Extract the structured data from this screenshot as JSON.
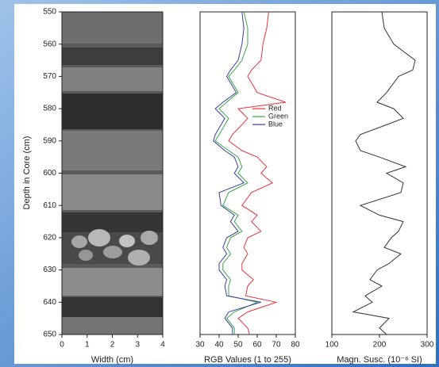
{
  "chart_data": [
    {
      "type": "image",
      "xlabel": "Width (cm)",
      "ylabel": "Depth in Core (cm)",
      "xlim": [
        0,
        4
      ],
      "xticks": [
        0,
        1,
        2,
        3,
        4
      ],
      "ylim": [
        550,
        650
      ],
      "yticks": [
        550,
        560,
        570,
        580,
        590,
        600,
        610,
        620,
        630,
        640,
        650
      ]
    },
    {
      "type": "line",
      "xlabel": "RGB Values (1 to 255)",
      "xlim": [
        30,
        80
      ],
      "xticks": [
        30,
        40,
        50,
        60,
        70,
        80
      ],
      "ylim": [
        550,
        650
      ],
      "legend": "center",
      "y": [
        550,
        555,
        560,
        565,
        568,
        570,
        575,
        578,
        580,
        583,
        585,
        588,
        590,
        593,
        595,
        598,
        600,
        603,
        606,
        610,
        613,
        615,
        618,
        620,
        623,
        625,
        628,
        630,
        633,
        635,
        638,
        640,
        643,
        645,
        648,
        650
      ],
      "series": [
        {
          "name": "Red",
          "color": "#e8343a",
          "values": [
            66,
            65,
            63,
            62,
            57,
            55,
            60,
            75,
            50,
            55,
            52,
            47,
            45,
            52,
            60,
            65,
            62,
            68,
            57,
            52,
            60,
            57,
            62,
            55,
            53,
            55,
            52,
            52,
            58,
            55,
            54,
            70,
            55,
            50,
            55,
            56
          ]
        },
        {
          "name": "Green",
          "color": "#3aa64a",
          "values": [
            53,
            55,
            55,
            52,
            48,
            45,
            50,
            44,
            40,
            45,
            43,
            40,
            38,
            45,
            50,
            52,
            50,
            55,
            45,
            42,
            50,
            48,
            52,
            46,
            44,
            46,
            42,
            42,
            46,
            45,
            45,
            60,
            48,
            44,
            48,
            48
          ]
        },
        {
          "name": "Blue",
          "color": "#3b3f9c",
          "values": [
            52,
            53,
            52,
            50,
            46,
            44,
            49,
            42,
            38,
            43,
            41,
            38,
            37,
            43,
            48,
            50,
            48,
            53,
            40,
            41,
            48,
            46,
            50,
            44,
            42,
            44,
            40,
            40,
            44,
            43,
            44,
            62,
            45,
            43,
            47,
            47
          ]
        }
      ]
    },
    {
      "type": "line",
      "xlabel": "Magn. Susc. (10⁻⁶ SI)",
      "xlim": [
        100,
        300
      ],
      "xticks": [
        100,
        200,
        300
      ],
      "ylim": [
        550,
        650
      ],
      "y": [
        550,
        555,
        560,
        565,
        568,
        570,
        575,
        578,
        580,
        583,
        585,
        588,
        590,
        593,
        595,
        598,
        600,
        603,
        606,
        610,
        613,
        615,
        618,
        620,
        623,
        625,
        628,
        630,
        633,
        635,
        638,
        640,
        643,
        645,
        648,
        650
      ],
      "series": [
        {
          "color": "#333333",
          "values": [
            205,
            210,
            230,
            275,
            270,
            240,
            215,
            195,
            230,
            250,
            215,
            160,
            150,
            160,
            200,
            255,
            215,
            250,
            245,
            160,
            200,
            250,
            240,
            225,
            210,
            245,
            220,
            195,
            180,
            205,
            170,
            185,
            145,
            220,
            200,
            215
          ]
        }
      ]
    }
  ]
}
